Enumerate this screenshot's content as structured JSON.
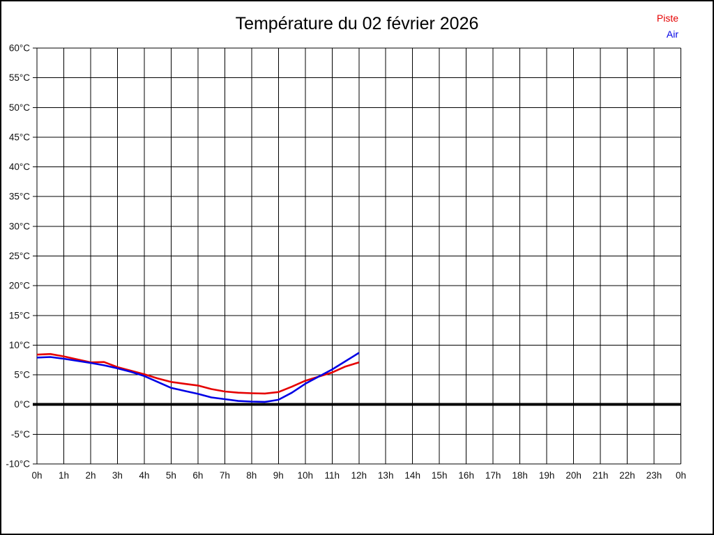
{
  "header": {
    "title": "Température du 02 février 2026"
  },
  "legend": {
    "items": [
      {
        "label": "Piste",
        "color": "#e50000"
      },
      {
        "label": "Air",
        "color": "#0000e5"
      }
    ]
  },
  "chart_data": {
    "type": "line",
    "title": "Température du 02 février 2026",
    "xlabel": "",
    "ylabel": "",
    "xlim": [
      0,
      24
    ],
    "ylim": [
      -10,
      60
    ],
    "grid": true,
    "zero_line_bold": true,
    "legend_position": "top-right",
    "x_ticks": [
      0,
      1,
      2,
      3,
      4,
      5,
      6,
      7,
      8,
      9,
      10,
      11,
      12,
      13,
      14,
      15,
      16,
      17,
      18,
      19,
      20,
      21,
      22,
      23,
      24
    ],
    "x_tick_labels": [
      "0h",
      "1h",
      "2h",
      "3h",
      "4h",
      "5h",
      "6h",
      "7h",
      "8h",
      "9h",
      "10h",
      "11h",
      "12h",
      "13h",
      "14h",
      "15h",
      "16h",
      "17h",
      "18h",
      "19h",
      "20h",
      "21h",
      "22h",
      "23h",
      "0h"
    ],
    "y_ticks": [
      -10,
      -5,
      0,
      5,
      10,
      15,
      20,
      25,
      30,
      35,
      40,
      45,
      50,
      55,
      60
    ],
    "y_tick_labels": [
      "-10°C",
      "-5°C",
      "0°C",
      "5°C",
      "10°C",
      "15°C",
      "20°C",
      "25°C",
      "30°C",
      "35°C",
      "40°C",
      "45°C",
      "50°C",
      "55°C",
      "60°C"
    ],
    "x": [
      0,
      0.5,
      1,
      1.5,
      2,
      2.5,
      3,
      3.5,
      4,
      4.5,
      5,
      5.5,
      6,
      6.5,
      7,
      7.5,
      8,
      8.5,
      9,
      9.5,
      10,
      10.5,
      11,
      11.5,
      12
    ],
    "series": [
      {
        "name": "Piste",
        "color": "#e50000",
        "values": [
          8.4,
          8.5,
          8.1,
          7.6,
          7.1,
          7.15,
          6.3,
          5.7,
          5.1,
          4.4,
          3.8,
          3.5,
          3.2,
          2.6,
          2.2,
          2.0,
          1.9,
          1.85,
          2.1,
          3.0,
          4.0,
          4.7,
          5.4,
          6.4,
          7.1
        ]
      },
      {
        "name": "Air",
        "color": "#0000e5",
        "values": [
          7.9,
          8.0,
          7.7,
          7.35,
          7.0,
          6.6,
          6.1,
          5.5,
          4.8,
          3.8,
          2.8,
          2.3,
          1.8,
          1.2,
          0.9,
          0.6,
          0.5,
          0.45,
          0.8,
          2.0,
          3.5,
          4.7,
          5.9,
          7.3,
          8.7
        ]
      }
    ]
  }
}
